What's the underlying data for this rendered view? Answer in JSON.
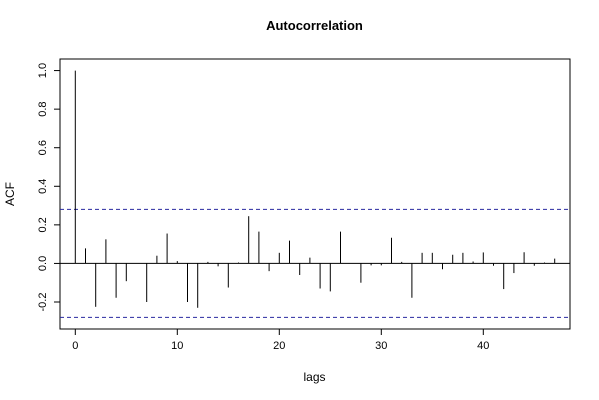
{
  "chart_data": {
    "type": "bar",
    "title": "Autocorrelation",
    "xlabel": "lags",
    "ylabel": "ACF",
    "xlim": [
      -1.5,
      48.5
    ],
    "ylim": [
      -0.34,
      1.06
    ],
    "x_ticks": [
      0,
      10,
      20,
      30,
      40
    ],
    "y_ticks": [
      -0.2,
      0.0,
      0.2,
      0.4,
      0.6,
      0.8,
      1.0
    ],
    "x_tick_labels": [
      "0",
      "10",
      "20",
      "30",
      "40"
    ],
    "y_tick_labels": [
      "-0.2",
      "0.0",
      "0.2",
      "0.4",
      "0.6",
      "0.8",
      "1.0"
    ],
    "confidence_bounds": [
      0.28,
      -0.28
    ],
    "bound_color": "#2a2aa0",
    "lags": [
      0,
      1,
      2,
      3,
      4,
      5,
      6,
      7,
      8,
      9,
      10,
      11,
      12,
      13,
      14,
      15,
      16,
      17,
      18,
      19,
      20,
      21,
      22,
      23,
      24,
      25,
      26,
      27,
      28,
      29,
      30,
      31,
      32,
      33,
      34,
      35,
      36,
      37,
      38,
      39,
      40,
      41,
      42,
      43,
      44,
      45,
      46,
      47
    ],
    "values": [
      1.0,
      0.078,
      -0.225,
      0.125,
      -0.178,
      -0.092,
      0.0,
      -0.2,
      0.04,
      0.155,
      0.012,
      -0.2,
      -0.23,
      0.008,
      -0.015,
      -0.125,
      0.005,
      0.245,
      0.165,
      -0.04,
      0.055,
      0.118,
      -0.06,
      0.03,
      -0.13,
      -0.145,
      0.165,
      0.0,
      -0.1,
      -0.01,
      -0.01,
      0.133,
      0.008,
      -0.178,
      0.055,
      0.055,
      -0.03,
      0.045,
      0.055,
      0.01,
      0.057,
      -0.012,
      -0.133,
      -0.05,
      0.058,
      -0.012,
      0.005,
      0.025
    ],
    "grid": false,
    "legend": "none"
  }
}
